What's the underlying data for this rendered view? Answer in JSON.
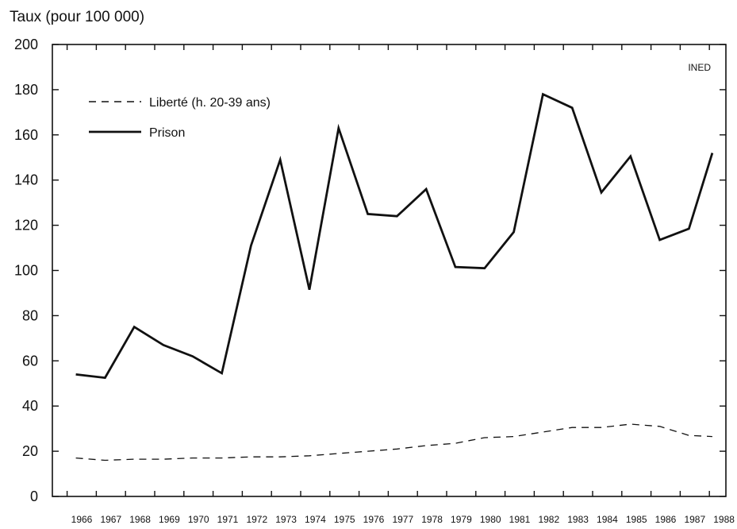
{
  "chart_data": {
    "type": "line",
    "ylabel": "Taux (pour 100 000)",
    "source_label": "INED",
    "ylim": [
      0,
      200
    ],
    "yticks": [
      0,
      20,
      40,
      60,
      80,
      100,
      120,
      140,
      160,
      180,
      200
    ],
    "x_tick_labels": [
      "1966",
      "1967",
      "1968",
      "1969",
      "1970",
      "1971",
      "1972",
      "1973",
      "1974",
      "1975",
      "1976",
      "1977",
      "1978",
      "1979",
      "1980",
      "1981",
      "1982",
      "1983",
      "1984",
      "1985",
      "1986",
      "1987",
      "1988"
    ],
    "legend_position": "top-left",
    "grid": false,
    "series": [
      {
        "name": "Liberté (h. 20-39 ans)",
        "style": "dashed",
        "color": "#111111",
        "x": [
          1965.8,
          1966.8,
          1967.8,
          1968.8,
          1969.8,
          1970.8,
          1971.8,
          1972.8,
          1973.8,
          1974.8,
          1975.8,
          1976.8,
          1977.8,
          1978.8,
          1979.8,
          1980.8,
          1981.8,
          1982.8,
          1983.8,
          1984.8,
          1985.8,
          1986.8,
          1987.6
        ],
        "values": [
          17,
          16,
          16.5,
          16.5,
          17,
          17,
          17.5,
          17.5,
          18,
          19,
          20,
          21,
          22.5,
          23.5,
          26,
          26.5,
          28.5,
          30.5,
          30.5,
          32,
          31,
          27,
          26.5
        ]
      },
      {
        "name": "Prison",
        "style": "solid",
        "color": "#111111",
        "x": [
          1965.8,
          1966.8,
          1967.8,
          1968.8,
          1969.8,
          1970.8,
          1971.8,
          1972.8,
          1973.8,
          1974.8,
          1975.8,
          1976.8,
          1977.8,
          1978.8,
          1979.8,
          1980.8,
          1981.8,
          1982.8,
          1983.8,
          1984.8,
          1985.8,
          1986.8,
          1987.6
        ],
        "values": [
          54,
          52.5,
          75,
          67,
          62,
          54.5,
          111,
          149,
          91.5,
          163,
          125,
          124,
          136,
          101.5,
          101,
          117,
          178,
          172,
          134.5,
          150.5,
          113.5,
          118.5,
          152
        ]
      }
    ]
  }
}
